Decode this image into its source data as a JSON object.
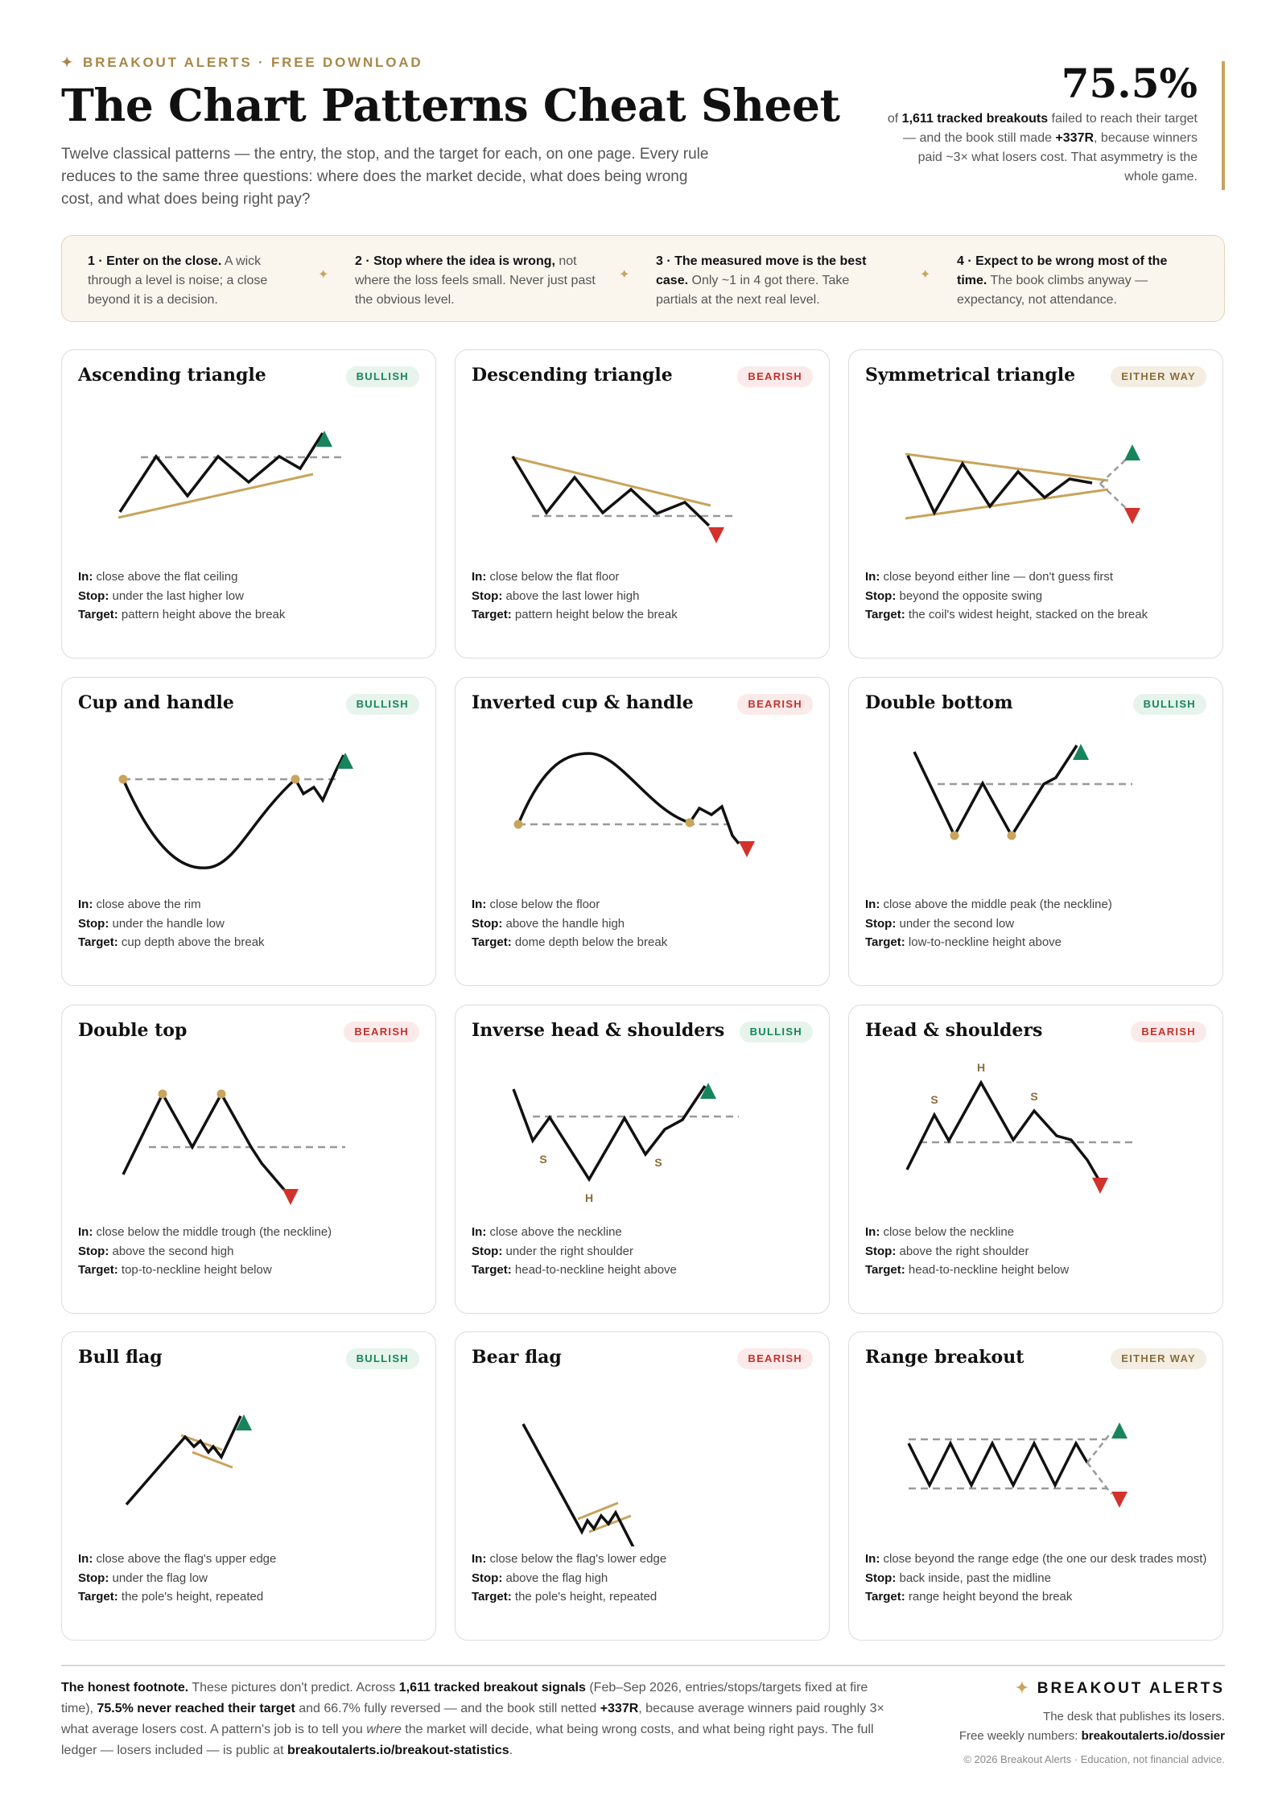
{
  "header": {
    "eyebrow_star": "✦",
    "eyebrow": "BREAKOUT ALERTS · FREE DOWNLOAD",
    "title": "The Chart Patterns Cheat Sheet",
    "intro": "Twelve classical patterns — the entry, the stop, and the target for each, on one page. Every rule reduces to the same three questions: where does the market decide, what does being wrong cost, and what does being right pay?"
  },
  "stat": {
    "value": "75.5%",
    "pre": "of ",
    "count": "1,611 tracked breakouts",
    "mid": " failed to reach their target — and the book still made ",
    "profit": "+337R",
    "post": ", because winners paid ~3× what losers cost. That asymmetry is the whole game."
  },
  "rules": [
    {
      "lead": "1 · Enter on the close.",
      "text": " A wick through a level is noise; a close beyond it is a decision."
    },
    {
      "lead": "2 · Stop where the idea is wrong,",
      "text": " not where the loss feels small. Never just past the obvious level."
    },
    {
      "lead": "3 · The measured move is the best case.",
      "text": " Only ~1 in 4 got there. Take partials at the next real level."
    },
    {
      "lead": "4 · Expect to be wrong most of the time.",
      "text": " The book climbs anyway — expectancy, not attendance."
    }
  ],
  "rule_separator": "✦",
  "labels": {
    "in": "In:",
    "stop": "Stop:",
    "target": "Target:"
  },
  "patterns": [
    {
      "key": "ascending-triangle",
      "title": "Ascending triangle",
      "badge": "BULLISH",
      "bias": "bull",
      "in": "close above the flat ceiling",
      "stop": "under the last higher low",
      "target": "pattern height above the break"
    },
    {
      "key": "descending-triangle",
      "title": "Descending triangle",
      "badge": "BEARISH",
      "bias": "bear",
      "in": "close below the flat floor",
      "stop": "above the last lower high",
      "target": "pattern height below the break"
    },
    {
      "key": "symmetrical-triangle",
      "title": "Symmetrical triangle",
      "badge": "EITHER WAY",
      "bias": "either",
      "in": "close beyond either line — don't guess first",
      "stop": "beyond the opposite swing",
      "target": "the coil's widest height, stacked on the break"
    },
    {
      "key": "cup-and-handle",
      "title": "Cup and handle",
      "badge": "BULLISH",
      "bias": "bull",
      "in": "close above the rim",
      "stop": "under the handle low",
      "target": "cup depth above the break"
    },
    {
      "key": "inverted-cup-handle",
      "title": "Inverted cup & handle",
      "badge": "BEARISH",
      "bias": "bear",
      "in": "close below the floor",
      "stop": "above the handle high",
      "target": "dome depth below the break"
    },
    {
      "key": "double-bottom",
      "title": "Double bottom",
      "badge": "BULLISH",
      "bias": "bull",
      "in": "close above the middle peak (the neckline)",
      "stop": "under the second low",
      "target": "low-to-neckline height above"
    },
    {
      "key": "double-top",
      "title": "Double top",
      "badge": "BEARISH",
      "bias": "bear",
      "in": "close below the middle trough (the neckline)",
      "stop": "above the second high",
      "target": "top-to-neckline height below"
    },
    {
      "key": "inverse-head-shoulders",
      "title": "Inverse head & shoulders",
      "badge": "BULLISH",
      "bias": "bull",
      "in": "close above the neckline",
      "stop": "under the right shoulder",
      "target": "head-to-neckline height above"
    },
    {
      "key": "head-shoulders",
      "title": "Head & shoulders",
      "badge": "BEARISH",
      "bias": "bear",
      "in": "close below the neckline",
      "stop": "above the right shoulder",
      "target": "head-to-neckline height below"
    },
    {
      "key": "bull-flag",
      "title": "Bull flag",
      "badge": "BULLISH",
      "bias": "bull",
      "in": "close above the flag's upper edge",
      "stop": "under the flag low",
      "target": "the pole's height, repeated"
    },
    {
      "key": "bear-flag",
      "title": "Bear flag",
      "badge": "BEARISH",
      "bias": "bear",
      "in": "close below the flag's lower edge",
      "stop": "above the flag high",
      "target": "the pole's height, repeated"
    },
    {
      "key": "range-breakout",
      "title": "Range breakout",
      "badge": "EITHER WAY",
      "bias": "either",
      "in": "close beyond the range edge (the one our desk trades most)",
      "stop": "back inside, past the midline",
      "target": "range height beyond the break"
    }
  ],
  "shoulder_labels": {
    "shoulder": "S",
    "head": "H"
  },
  "colors": {
    "gold": "#c8a45c",
    "bull": "#17855c",
    "bear": "#d3312b",
    "line": "#111111",
    "neckline": "#999999"
  },
  "footer": {
    "lead": "The honest footnote.",
    "t1": " These pictures don't predict. Across ",
    "b1": "1,611 tracked breakout signals",
    "t2": " (Feb–Sep 2026, entries/stops/targets fixed at fire time), ",
    "b2": "75.5% never reached their target",
    "t3": " and 66.7% fully reversed — and the book still netted ",
    "b3": "+337R",
    "t4": ", because average winners paid roughly 3× what average losers cost. A pattern's job is to tell you ",
    "em": "where",
    "t5": " the market will decide, what being wrong costs, and what being right pays. The full ledger — losers included — is public at ",
    "b4": "breakoutalerts.io/breakout-statistics",
    "t6": "."
  },
  "brand": {
    "star": "✦",
    "name": "BREAKOUT ALERTS",
    "tagline": "The desk that publishes its losers.",
    "weekly_pre": "Free weekly numbers: ",
    "weekly_link": "breakoutalerts.io/dossier",
    "copyright": "© 2026 Breakout Alerts · Education, not financial advice."
  }
}
